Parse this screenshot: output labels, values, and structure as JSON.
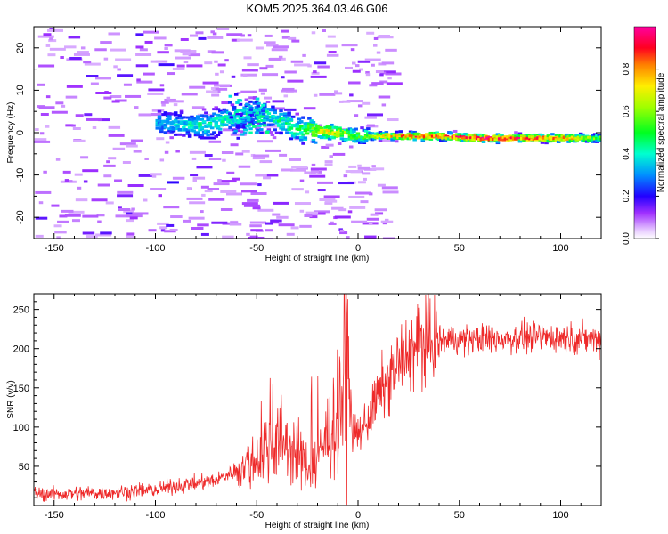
{
  "figure_title": "KOM5.2025.364.03.46.G06",
  "colors": {
    "snr_line": "#ee2a2a",
    "axis": "#000000",
    "background": "#ffffff"
  },
  "chart_data": [
    {
      "type": "heatmap",
      "title": "",
      "xlabel": "Height of straight line (km)",
      "ylabel": "Frequency (Hz)",
      "xlim": [
        -160,
        120
      ],
      "ylim": [
        -25,
        25
      ],
      "x_ticks": [
        -150,
        -100,
        -50,
        0,
        50,
        100
      ],
      "y_ticks": [
        -20,
        -10,
        0,
        10,
        20
      ],
      "colorbar": {
        "label": "Normalized spectral amplitude",
        "range": [
          0.0,
          1.0
        ],
        "ticks": [
          0.0,
          0.2,
          0.4,
          0.6,
          0.8
        ],
        "tick_labels": [
          "0.0",
          "0.2",
          "0.4",
          "0.6",
          "0.8"
        ]
      },
      "description_points": [
        {
          "x": -95,
          "freq": 2.5,
          "amp": 0.35
        },
        {
          "x": -75,
          "freq": 2.0,
          "amp": 0.45
        },
        {
          "x": -50,
          "freq": 5.5,
          "amp": 0.4
        },
        {
          "x": -30,
          "freq": 1.0,
          "amp": 0.5
        },
        {
          "x": -15,
          "freq": 0.5,
          "amp": 0.75
        },
        {
          "x": 0,
          "freq": -0.5,
          "amp": 0.55
        },
        {
          "x": 20,
          "freq": -0.5,
          "amp": 0.85
        },
        {
          "x": 40,
          "freq": -0.5,
          "amp": 0.9
        },
        {
          "x": 60,
          "freq": -1.0,
          "amp": 1.0
        },
        {
          "x": 80,
          "freq": -1.0,
          "amp": 0.9
        },
        {
          "x": 100,
          "freq": -1.0,
          "amp": 0.85
        },
        {
          "x": 118,
          "freq": -1.0,
          "amp": 0.6
        }
      ]
    },
    {
      "type": "line",
      "title": "",
      "xlabel": "Height of straight line (km)",
      "ylabel": "SNR (v/v)",
      "xlim": [
        -160,
        120
      ],
      "ylim": [
        0,
        270
      ],
      "x_ticks": [
        -150,
        -100,
        -50,
        0,
        50,
        100
      ],
      "y_ticks": [
        50,
        100,
        150,
        200,
        250
      ],
      "series": [
        {
          "name": "SNR",
          "x": [
            -160,
            -140,
            -120,
            -100,
            -90,
            -80,
            -70,
            -60,
            -50,
            -45,
            -40,
            -35,
            -30,
            -25,
            -20,
            -15,
            -10,
            -7,
            -5,
            -3,
            0,
            5,
            10,
            15,
            20,
            25,
            30,
            35,
            40,
            50,
            60,
            70,
            80,
            90,
            100,
            110,
            120
          ],
          "values": [
            15,
            15,
            17,
            20,
            25,
            28,
            32,
            45,
            60,
            75,
            85,
            80,
            65,
            50,
            60,
            90,
            110,
            160,
            180,
            95,
            90,
            110,
            140,
            160,
            180,
            195,
            205,
            210,
            212,
            212,
            212,
            212,
            214,
            215,
            215,
            213,
            212
          ]
        }
      ]
    }
  ]
}
